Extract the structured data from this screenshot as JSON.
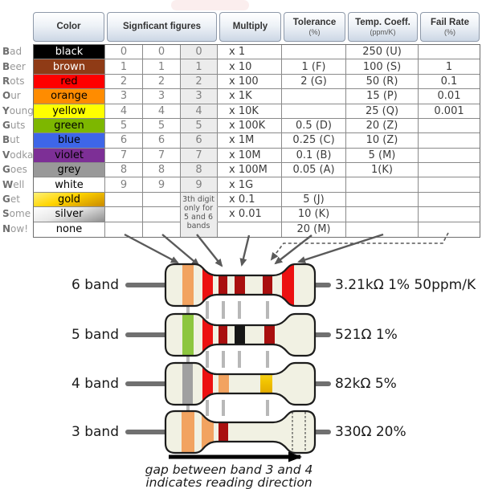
{
  "table": {
    "headers": [
      {
        "label": "Color",
        "sub": ""
      },
      {
        "label": "Signficant figures",
        "sub": ""
      },
      {
        "label": "Multiply",
        "sub": ""
      },
      {
        "label": "Tolerance",
        "sub": "(%)"
      },
      {
        "label": "Temp. Coeff.",
        "sub": "(ppm/K)"
      },
      {
        "label": "Fail Rate",
        "sub": "(%)"
      }
    ],
    "third_digit_note": "3th digit only for 5 and 6 bands",
    "rows": [
      {
        "mnemonic": "Bad",
        "color": "black",
        "swatch": "#000000",
        "text_color": "#ffffff",
        "digits": [
          "0",
          "0",
          "0"
        ],
        "multiply": "x 1",
        "tolerance": "",
        "temp_coeff": "250 (U)",
        "fail_rate": ""
      },
      {
        "mnemonic": "Beer",
        "color": "brown",
        "swatch": "#8F3B16",
        "text_color": "#ffffff",
        "digits": [
          "1",
          "1",
          "1"
        ],
        "multiply": "x 10",
        "tolerance": "1 (F)",
        "temp_coeff": "100 (S)",
        "fail_rate": "1"
      },
      {
        "mnemonic": "Rots",
        "color": "red",
        "swatch": "#FF0000",
        "text_color": "#000000",
        "digits": [
          "2",
          "2",
          "2"
        ],
        "multiply": "x 100",
        "tolerance": "2 (G)",
        "temp_coeff": "50 (R)",
        "fail_rate": "0.1"
      },
      {
        "mnemonic": "Our",
        "color": "orange",
        "swatch": "#FF8C00",
        "text_color": "#000000",
        "digits": [
          "3",
          "3",
          "3"
        ],
        "multiply": "x 1K",
        "tolerance": "",
        "temp_coeff": "15 (P)",
        "fail_rate": "0.01"
      },
      {
        "mnemonic": "Young",
        "color": "yellow",
        "swatch": "#FFFF00",
        "text_color": "#000000",
        "digits": [
          "4",
          "4",
          "4"
        ],
        "multiply": "x 10K",
        "tolerance": "",
        "temp_coeff": "25 (Q)",
        "fail_rate": "0.001"
      },
      {
        "mnemonic": "Guts",
        "color": "green",
        "swatch": "#7DB700",
        "text_color": "#000000",
        "digits": [
          "5",
          "5",
          "5"
        ],
        "multiply": "x 100K",
        "tolerance": "0.5 (D)",
        "temp_coeff": "20 (Z)",
        "fail_rate": ""
      },
      {
        "mnemonic": "But",
        "color": "blue",
        "swatch": "#3E66E8",
        "text_color": "#000000",
        "digits": [
          "6",
          "6",
          "6"
        ],
        "multiply": "x 1M",
        "tolerance": "0.25 (C)",
        "temp_coeff": "10 (Z)",
        "fail_rate": ""
      },
      {
        "mnemonic": "Vodka",
        "color": "violet",
        "swatch": "#7D2F96",
        "text_color": "#000000",
        "digits": [
          "7",
          "7",
          "7"
        ],
        "multiply": "x 10M",
        "tolerance": "0.1 (B)",
        "temp_coeff": "5 (M)",
        "fail_rate": ""
      },
      {
        "mnemonic": "Goes",
        "color": "grey",
        "swatch": "#999999",
        "text_color": "#000000",
        "digits": [
          "8",
          "8",
          "8"
        ],
        "multiply": "x 100M",
        "tolerance": "0.05 (A)",
        "temp_coeff": "1(K)",
        "fail_rate": ""
      },
      {
        "mnemonic": "Well",
        "color": "white",
        "swatch": "#FFFFFF",
        "text_color": "#000000",
        "digits": [
          "9",
          "9",
          "9"
        ],
        "multiply": "x 1G",
        "tolerance": "",
        "temp_coeff": "",
        "fail_rate": ""
      },
      {
        "mnemonic": "Get",
        "color": "gold",
        "swatch": "gold-gradient",
        "text_color": "#000000",
        "digits": [
          "",
          "",
          ""
        ],
        "multiply": "x 0.1",
        "tolerance": "5 (J)",
        "temp_coeff": "",
        "fail_rate": ""
      },
      {
        "mnemonic": "Some",
        "color": "silver",
        "swatch": "silver-gradient",
        "text_color": "#000000",
        "digits": [
          "",
          "",
          ""
        ],
        "multiply": "x 0.01",
        "tolerance": "10 (K)",
        "temp_coeff": "",
        "fail_rate": ""
      },
      {
        "mnemonic": "Now!",
        "color": "none",
        "swatch": "#FFFFFF",
        "text_color": "#000000",
        "digits": [
          "",
          "",
          ""
        ],
        "multiply": "",
        "tolerance": "20 (M)",
        "temp_coeff": "",
        "fail_rate": ""
      }
    ],
    "gradients": {
      "gold": [
        "#FFF176",
        "#FFD400",
        "#C98A00"
      ],
      "silver": [
        "#FFFFFF",
        "#E8E8E8",
        "#8F8F8F"
      ]
    }
  },
  "resistors": [
    {
      "label": "6 band",
      "value": "3.21kΩ 1% 50ppm/K",
      "bands": [
        "orange",
        "red",
        "brown",
        "brown",
        "brown",
        "red"
      ],
      "missing_band_dashed": false
    },
    {
      "label": "5 band",
      "value": "521Ω 1%",
      "bands": [
        "green",
        "red",
        "brown",
        "black",
        "brown"
      ],
      "missing_band_dashed": false
    },
    {
      "label": "4 band",
      "value": "82kΩ 5%",
      "bands": [
        "grey",
        "red",
        "orange",
        "gold"
      ],
      "missing_band_dashed": false
    },
    {
      "label": "3 band",
      "value": "330Ω 20%",
      "bands": [
        "orange",
        "orange",
        "brown"
      ],
      "missing_band_dashed": true
    }
  ],
  "band_colors": {
    "orange": "#F2A360",
    "red": "#EC1111",
    "brown": "#A90F0F",
    "black": "#161616",
    "green": "#8DC63F",
    "grey": "#A0A0A0",
    "gold_stops": [
      "#FBEB55",
      "#F2C400",
      "#D18E00"
    ],
    "resistor_body": "#F1F1E3",
    "outline": "#1c1c1c"
  },
  "caption": {
    "line1": "gap between band 3 and 4",
    "line2": "indicates reading direction"
  }
}
